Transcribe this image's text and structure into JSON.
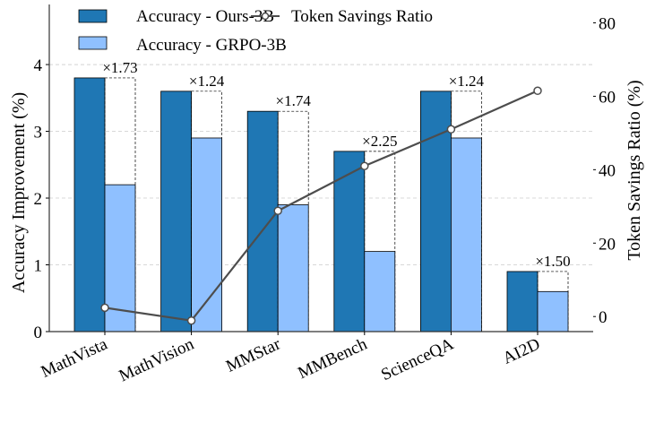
{
  "chart_data": {
    "type": "bar",
    "categories": [
      "MathVista",
      "MathVision",
      "MMStar",
      "MMBench",
      "ScienceQA",
      "AI2D"
    ],
    "series": [
      {
        "name": "Accuracy - Ours-3B",
        "axis": "left",
        "color": "#1f77b4",
        "values": [
          3.8,
          3.6,
          3.3,
          2.7,
          3.6,
          0.9
        ]
      },
      {
        "name": "Accuracy - GRPO-3B",
        "axis": "left",
        "color": "#8fc0ff",
        "values": [
          2.2,
          2.9,
          1.9,
          1.2,
          2.9,
          0.6
        ]
      },
      {
        "name": "Token Savings Ratio",
        "axis": "right",
        "type": "line",
        "color": "#4d4d4d",
        "values": [
          2.4,
          -1.1,
          28.8,
          41.0,
          51.0,
          61.5
        ]
      }
    ],
    "annotations": [
      "×1.73",
      "×1.24",
      "×1.74",
      "×2.25",
      "×1.24",
      "×1.50"
    ],
    "ylabel": "Accuracy Improvement (%)",
    "ylabel_right": "Token Savings Ratio (%)",
    "ylim": [
      0,
      4.9
    ],
    "ylim_right": [
      -4.1,
      85
    ],
    "yticks": [
      0,
      1,
      2,
      3,
      4
    ],
    "yticks_right": [
      0,
      20,
      40,
      60,
      80
    ],
    "grid": "horizontal dashed",
    "legend": "top"
  }
}
